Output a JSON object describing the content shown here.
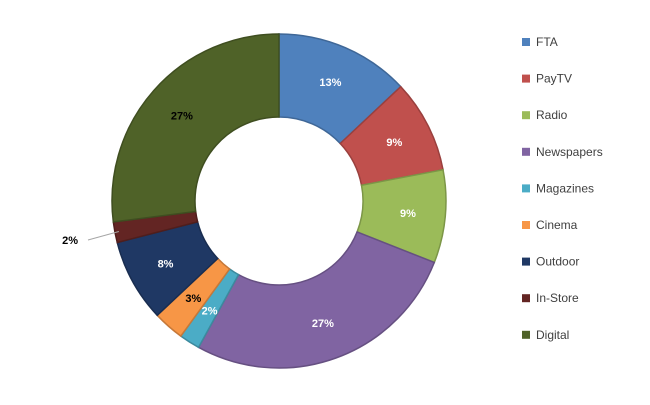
{
  "chart_data": {
    "type": "pie",
    "title": "",
    "categories": [
      "FTA",
      "PayTV",
      "Radio",
      "Newspapers",
      "Magazines",
      "Cinema",
      "Outdoor",
      "In-Store",
      "Digital"
    ],
    "values": [
      13,
      9,
      9,
      27,
      2,
      3,
      8,
      2,
      27
    ],
    "labels": [
      "13%",
      "9%",
      "9%",
      "27%",
      "2%",
      "3%",
      "8%",
      "2%",
      "27%"
    ],
    "colors": [
      "#4F81BD",
      "#C0504D",
      "#9BBB59",
      "#8064A2",
      "#4BACC6",
      "#F79646",
      "#1F3864",
      "#632523",
      "#4F6228"
    ],
    "label_colors": [
      "#ffffff",
      "#ffffff",
      "#ffffff",
      "#ffffff",
      "#ffffff",
      "#000000",
      "#ffffff",
      "#000000",
      "#000000"
    ],
    "donut": true,
    "legend_position": "right"
  }
}
